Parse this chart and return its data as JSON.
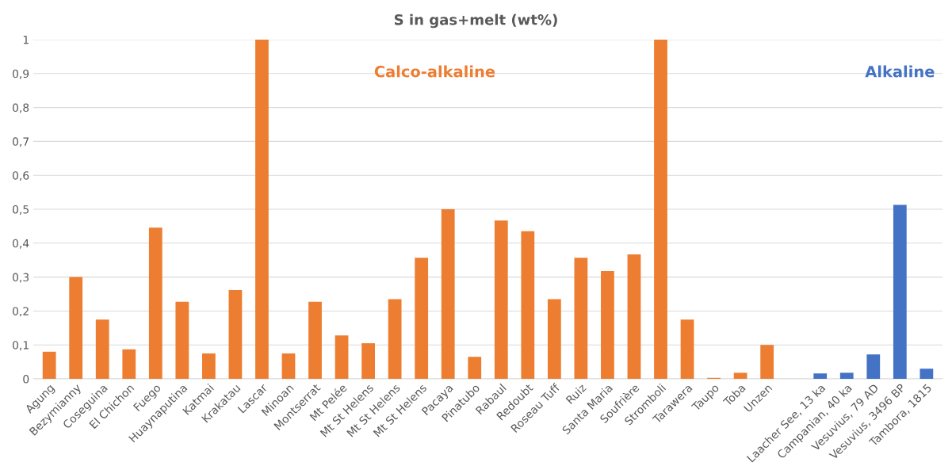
{
  "chart_data": {
    "type": "bar",
    "title": "S in gas+melt (wt%)",
    "categories": [
      "Agung",
      "Bezymianny",
      "Coseguina",
      "El Chichon",
      "Fuego",
      "Huaynaputina",
      "Katmai",
      "Krakatau",
      "Lascar",
      "Minoan",
      "Montserrat",
      "Mt Pelée",
      "Mt St Helens",
      "Mt St Helens",
      "Mt St Helens",
      "Pacaya",
      "Pinatubo",
      "Rabaul",
      "Redoubt",
      "Roseau Tuff",
      "Ruiz",
      "Santa Maria",
      "Soufrière",
      "Stromboli",
      "Tarawera",
      "Taupo",
      "Toba",
      "Unzen",
      null,
      "Laacher See, 13 ka",
      "Campanian, 40 ka",
      "Vesuvius, 79 AD",
      "Vesuvius, 3496 BP",
      "Tambora, 1815"
    ],
    "series": [
      {
        "name": "Calco-alkaline",
        "color": "#ed7d31",
        "values": [
          0.08,
          0.3,
          0.175,
          0.087,
          0.446,
          0.227,
          0.075,
          0.262,
          1,
          0.075,
          0.227,
          0.128,
          0.105,
          0.235,
          0.357,
          0.5,
          0.065,
          0.467,
          0.435,
          0.235,
          0.357,
          0.318,
          0.367,
          1,
          0.175,
          0.003,
          0.018,
          0.1,
          null,
          null,
          null,
          null,
          null,
          null
        ]
      },
      {
        "name": "Alkaline",
        "color": "#4472c4",
        "values": [
          null,
          null,
          null,
          null,
          null,
          null,
          null,
          null,
          null,
          null,
          null,
          null,
          null,
          null,
          null,
          null,
          null,
          null,
          null,
          null,
          null,
          null,
          null,
          null,
          null,
          null,
          null,
          null,
          null,
          0.016,
          0.018,
          0.072,
          0.513,
          0.03
        ]
      }
    ],
    "ylim": [
      0,
      1
    ],
    "yticks": [
      0,
      {
        "value": 0.1,
        "label": "0,1"
      },
      {
        "value": 0.2,
        "label": "0,2"
      },
      {
        "value": 0.3,
        "label": "0,3"
      },
      {
        "value": 0.4,
        "label": "0,4"
      },
      {
        "value": 0.5,
        "label": "0,5"
      },
      {
        "value": 0.6,
        "label": "0,6"
      },
      {
        "value": 0.7,
        "label": "0,7"
      },
      {
        "value": 0.8,
        "label": "0,8"
      },
      {
        "value": 0.9,
        "label": "0,9"
      },
      1
    ],
    "grid": "y"
  }
}
